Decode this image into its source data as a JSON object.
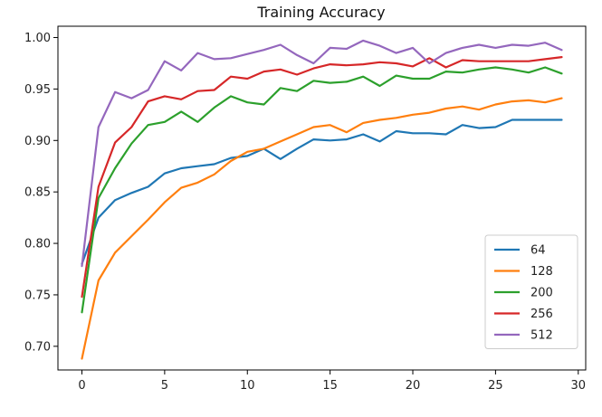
{
  "chart_data": {
    "type": "line",
    "title": "Training Accuracy",
    "xlabel": "",
    "ylabel": "",
    "xlim": [
      -1.45,
      30.45
    ],
    "ylim": [
      0.677,
      1.011
    ],
    "xticks": [
      0,
      5,
      10,
      15,
      20,
      25,
      30
    ],
    "yticks": [
      0.7,
      0.75,
      0.8,
      0.85,
      0.9,
      0.95,
      1.0
    ],
    "ytick_labels": [
      "0.70",
      "0.75",
      "0.80",
      "0.85",
      "0.90",
      "0.95",
      "1.00"
    ],
    "grid": false,
    "legend_position": "lower-right",
    "x": [
      0,
      1,
      2,
      3,
      4,
      5,
      6,
      7,
      8,
      9,
      10,
      11,
      12,
      13,
      14,
      15,
      16,
      17,
      18,
      19,
      20,
      21,
      22,
      23,
      24,
      25,
      26,
      27,
      28,
      29
    ],
    "series": [
      {
        "name": "64",
        "color": "#1f77b4",
        "values": [
          0.78,
          0.825,
          0.842,
          0.849,
          0.855,
          0.868,
          0.873,
          0.875,
          0.877,
          0.883,
          0.885,
          0.892,
          0.882,
          0.892,
          0.901,
          0.9,
          0.901,
          0.906,
          0.899,
          0.909,
          0.907,
          0.907,
          0.906,
          0.915,
          0.912,
          0.913,
          0.92,
          0.92,
          0.92,
          0.92
        ]
      },
      {
        "name": "128",
        "color": "#ff7f0e",
        "values": [
          0.688,
          0.764,
          0.791,
          0.807,
          0.823,
          0.84,
          0.854,
          0.859,
          0.867,
          0.88,
          0.889,
          0.892,
          0.899,
          0.906,
          0.913,
          0.915,
          0.908,
          0.917,
          0.92,
          0.922,
          0.925,
          0.927,
          0.931,
          0.933,
          0.93,
          0.935,
          0.938,
          0.939,
          0.937,
          0.941
        ]
      },
      {
        "name": "200",
        "color": "#2ca02c",
        "values": [
          0.733,
          0.844,
          0.873,
          0.897,
          0.915,
          0.918,
          0.928,
          0.918,
          0.932,
          0.943,
          0.937,
          0.935,
          0.951,
          0.948,
          0.958,
          0.956,
          0.957,
          0.962,
          0.953,
          0.963,
          0.96,
          0.96,
          0.967,
          0.966,
          0.969,
          0.971,
          0.969,
          0.966,
          0.971,
          0.965
        ]
      },
      {
        "name": "256",
        "color": "#d62728",
        "values": [
          0.748,
          0.855,
          0.898,
          0.913,
          0.938,
          0.943,
          0.94,
          0.948,
          0.949,
          0.962,
          0.96,
          0.967,
          0.969,
          0.964,
          0.97,
          0.974,
          0.973,
          0.974,
          0.976,
          0.975,
          0.972,
          0.98,
          0.971,
          0.978,
          0.977,
          0.977,
          0.977,
          0.977,
          0.979,
          0.981
        ]
      },
      {
        "name": "512",
        "color": "#9467bd",
        "values": [
          0.778,
          0.913,
          0.947,
          0.941,
          0.949,
          0.977,
          0.968,
          0.985,
          0.979,
          0.98,
          0.984,
          0.988,
          0.993,
          0.983,
          0.975,
          0.99,
          0.989,
          0.997,
          0.992,
          0.985,
          0.99,
          0.975,
          0.985,
          0.99,
          0.993,
          0.99,
          0.993,
          0.992,
          0.995,
          0.988
        ]
      }
    ]
  }
}
